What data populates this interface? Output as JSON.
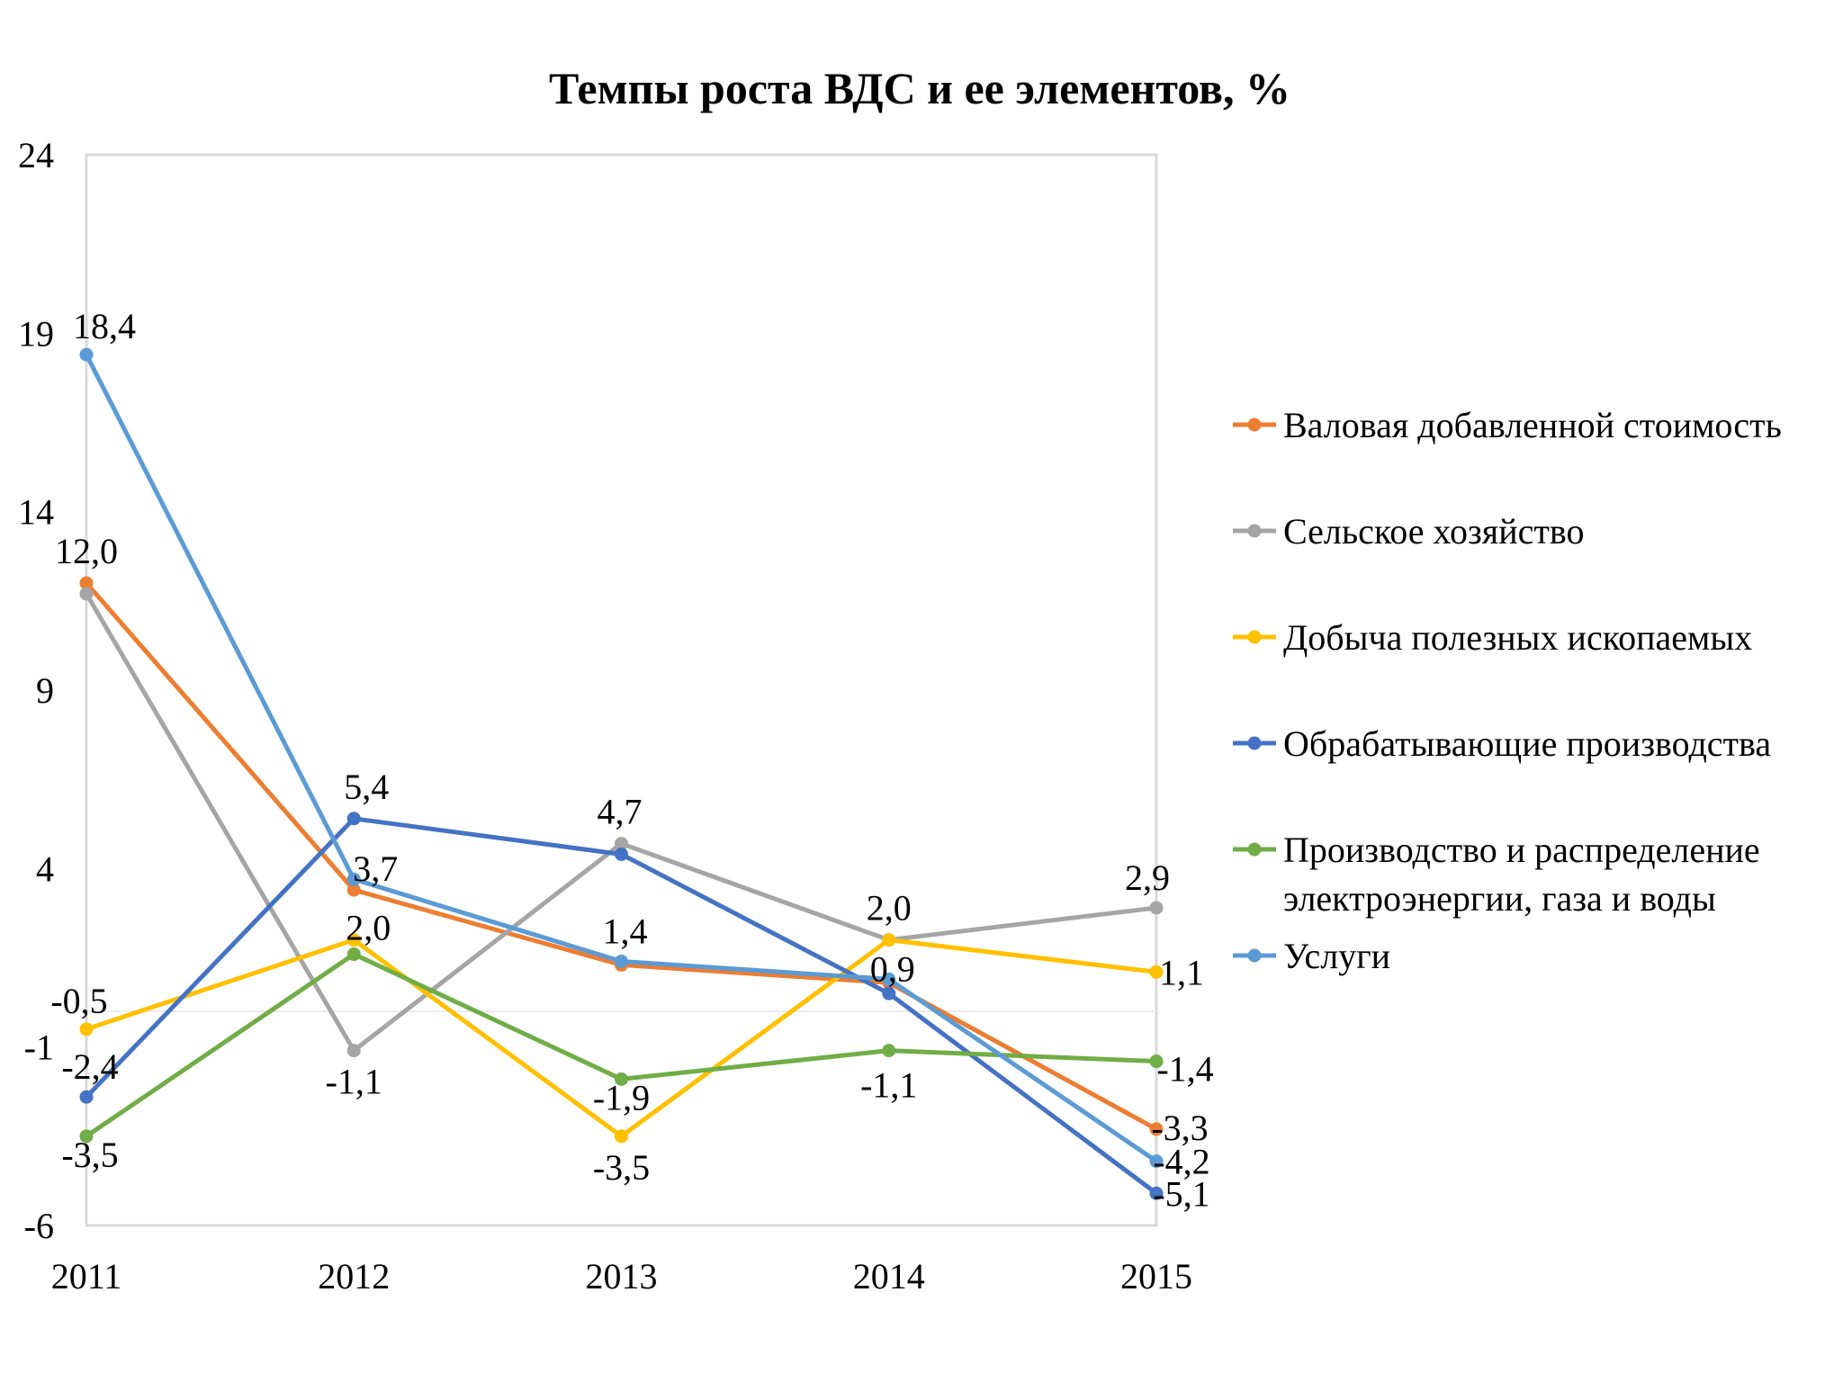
{
  "chart_data": {
    "type": "line",
    "title": "Темпы роста ВДС и ее элементов, %",
    "xlabel": "",
    "ylabel": "",
    "x": [
      "2011",
      "2012",
      "2013",
      "2014",
      "2015"
    ],
    "ylim": [
      -6,
      24
    ],
    "yticks": [
      "24",
      "19",
      "14",
      "9",
      "4",
      "-1",
      "-6"
    ],
    "ytick_values": [
      24,
      19,
      14,
      9,
      4,
      -1,
      -6
    ],
    "grid": false,
    "legend_position": "right",
    "series": [
      {
        "name": "Валовая добавленной стоимость",
        "color": "#ED7D31",
        "values": [
          12.0,
          3.4,
          1.3,
          0.8,
          -3.3
        ],
        "labels": [
          "12,0",
          "",
          "",
          "",
          "-3,3"
        ]
      },
      {
        "name": "Сельское  хозяйство",
        "color": "#A5A5A5",
        "values": [
          11.7,
          -1.1,
          4.7,
          2.0,
          2.9
        ],
        "labels": [
          "",
          "-1,1",
          "4,7",
          "",
          "2,9"
        ]
      },
      {
        "name": "Добыча полезных ископаемых",
        "color": "#FFC000",
        "values": [
          -0.5,
          2.0,
          -3.5,
          2.0,
          1.1
        ],
        "labels": [
          "-0,5",
          "2,0",
          "-3,5",
          "2,0",
          "1,1"
        ]
      },
      {
        "name": "Обрабатывающие производства",
        "color": "#4472C4",
        "values": [
          -2.4,
          5.4,
          4.4,
          0.5,
          -5.1
        ],
        "labels": [
          "-2,4",
          "5,4",
          "",
          "",
          "-5,1"
        ]
      },
      {
        "name": "Производство и распределение электроэнергии, газа и воды",
        "name_lines": [
          "Производство и распределение",
          "электроэнергии, газа и воды"
        ],
        "color": "#70AD47",
        "values": [
          -3.5,
          1.6,
          -1.9,
          -1.1,
          -1.4
        ],
        "labels": [
          "-3,5",
          "",
          "-1,9",
          "-1,1",
          "-1,4"
        ]
      },
      {
        "name": "Услуги",
        "color": "#5B9BD5",
        "values": [
          18.4,
          3.7,
          1.4,
          0.9,
          -4.2
        ],
        "labels": [
          "18,4",
          "3,7",
          "1,4",
          "0,9",
          "-4,2"
        ]
      }
    ]
  }
}
